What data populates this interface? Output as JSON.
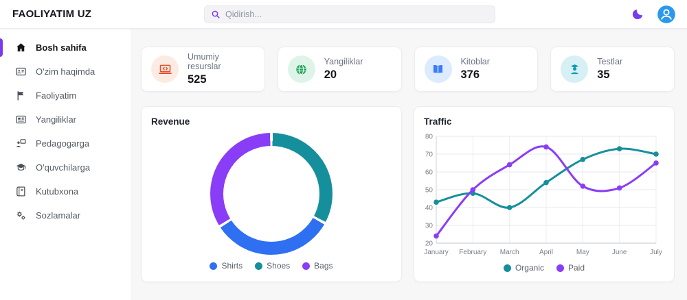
{
  "header": {
    "brand": "FAOLIYATIM UZ",
    "search_placeholder": "Qidirish..."
  },
  "sidebar": {
    "items": [
      {
        "label": "Bosh sahifa",
        "icon": "home-icon",
        "active": true
      },
      {
        "label": "O'zim haqimda",
        "icon": "id-card-icon",
        "active": false
      },
      {
        "label": "Faoliyatim",
        "icon": "flag-icon",
        "active": false
      },
      {
        "label": "Yangiliklar",
        "icon": "newspaper-icon",
        "active": false
      },
      {
        "label": "Pedagogarga",
        "icon": "teacher-board-icon",
        "active": false
      },
      {
        "label": "O'quvchilarga",
        "icon": "graduation-cap-icon",
        "active": false
      },
      {
        "label": "Kutubxona",
        "icon": "book-icon",
        "active": false
      },
      {
        "label": "Sozlamalar",
        "icon": "gears-icon",
        "active": false
      }
    ]
  },
  "stats": [
    {
      "label": "Umumiy resurslar",
      "value": "525",
      "icon": "laptop-code-icon",
      "color": "#e0502f",
      "bg": "#fcebe2"
    },
    {
      "label": "Yangiliklar",
      "value": "20",
      "icon": "globe-icon",
      "color": "#1ea455",
      "bg": "#def4e8"
    },
    {
      "label": "Kitoblar",
      "value": "376",
      "icon": "open-book-icon",
      "color": "#3d7bf7",
      "bg": "#dcebfd"
    },
    {
      "label": "Testlar",
      "value": "35",
      "icon": "student-icon",
      "color": "#0f9aae",
      "bg": "#d7f0f5"
    }
  ],
  "chart_data": [
    {
      "id": "revenue",
      "type": "donut",
      "title": "Revenue",
      "labels": [
        "Shirts",
        "Shoes",
        "Bags"
      ],
      "values": [
        33,
        33,
        34
      ],
      "colors": {
        "Shirts": "#2f6ff2",
        "Shoes": "#168f9c",
        "Bags": "#8a3df6"
      },
      "segments_clockwise_from_top": [
        "Shoes",
        "Shirts",
        "Bags"
      ],
      "legend": [
        "Shirts",
        "Shoes",
        "Bags"
      ],
      "legend_position": "bottom",
      "hole": true
    },
    {
      "id": "traffic",
      "type": "line",
      "title": "Traffic",
      "x": [
        "January",
        "February",
        "March",
        "April",
        "May",
        "June",
        "July"
      ],
      "series": [
        {
          "name": "Organic",
          "color": "#168f9c",
          "values": [
            43,
            48,
            40,
            54,
            67,
            73,
            70
          ]
        },
        {
          "name": "Paid",
          "color": "#8a3df6",
          "values": [
            24,
            50,
            64,
            74,
            52,
            51,
            65
          ]
        }
      ],
      "ylim": [
        20,
        80
      ],
      "yticks": [
        20,
        30,
        40,
        50,
        60,
        70,
        80
      ],
      "grid": true,
      "smooth": true,
      "markers": true,
      "legend_position": "bottom"
    }
  ],
  "theme": {
    "accent": "#7c3aed",
    "content_bg": "#f7f7f8",
    "card_border": "#ececf0",
    "text_dark": "#15151c",
    "text_gray": "#6b7280",
    "avatar_bg": "#2b98ec"
  }
}
